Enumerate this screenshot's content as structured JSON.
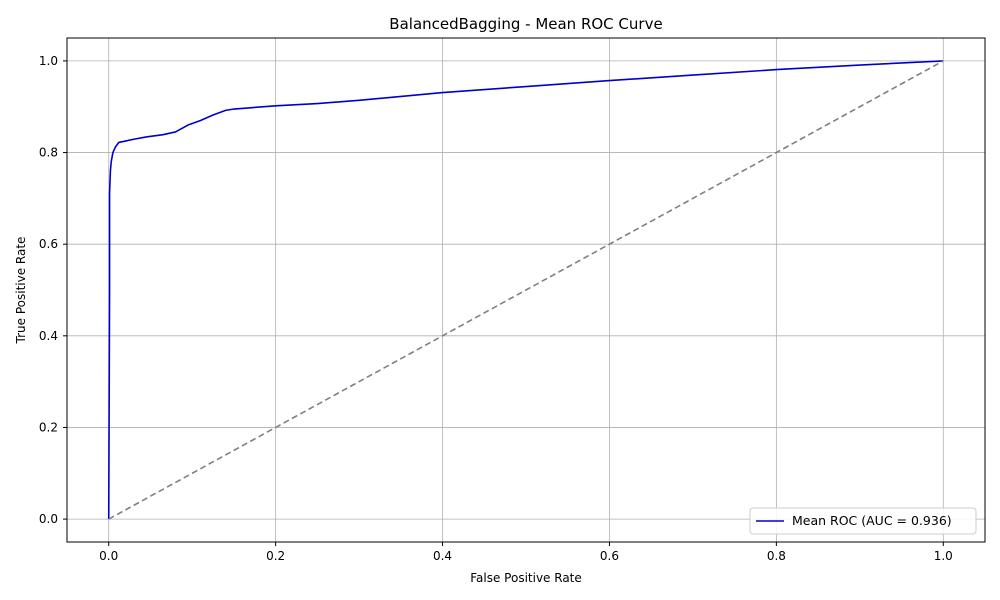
{
  "chart_data": {
    "type": "line",
    "title": "BalancedBagging - Mean ROC Curve",
    "xlabel": "False Positive Rate",
    "ylabel": "True Positive Rate",
    "xlim": [
      -0.05,
      1.05
    ],
    "ylim": [
      -0.05,
      1.05
    ],
    "xticks": [
      0.0,
      0.2,
      0.4,
      0.6,
      0.8,
      1.0
    ],
    "yticks": [
      0.0,
      0.2,
      0.4,
      0.6,
      0.8,
      1.0
    ],
    "xtick_labels": [
      "0.0",
      "0.2",
      "0.4",
      "0.6",
      "0.8",
      "1.0"
    ],
    "ytick_labels": [
      "0.0",
      "0.2",
      "0.4",
      "0.6",
      "0.8",
      "1.0"
    ],
    "grid": true,
    "legend_position": "lower-right",
    "series": [
      {
        "name": "Mean ROC (AUC = 0.936)",
        "color": "#0000cc",
        "style": "solid",
        "x": [
          0.0,
          0.001,
          0.001,
          0.002,
          0.003,
          0.005,
          0.008,
          0.012,
          0.02,
          0.03,
          0.045,
          0.065,
          0.08,
          0.095,
          0.11,
          0.125,
          0.14,
          0.15,
          0.2,
          0.25,
          0.3,
          0.4,
          0.5,
          0.6,
          0.7,
          0.8,
          0.9,
          1.0
        ],
        "y": [
          0.0,
          0.5,
          0.71,
          0.76,
          0.78,
          0.8,
          0.812,
          0.822,
          0.825,
          0.829,
          0.834,
          0.839,
          0.845,
          0.86,
          0.87,
          0.882,
          0.892,
          0.895,
          0.902,
          0.907,
          0.914,
          0.931,
          0.944,
          0.957,
          0.969,
          0.981,
          0.991,
          1.0
        ]
      },
      {
        "name": "",
        "color": "#808080",
        "style": "dashed",
        "x": [
          0.0,
          1.0
        ],
        "y": [
          0.0,
          1.0
        ]
      }
    ]
  }
}
